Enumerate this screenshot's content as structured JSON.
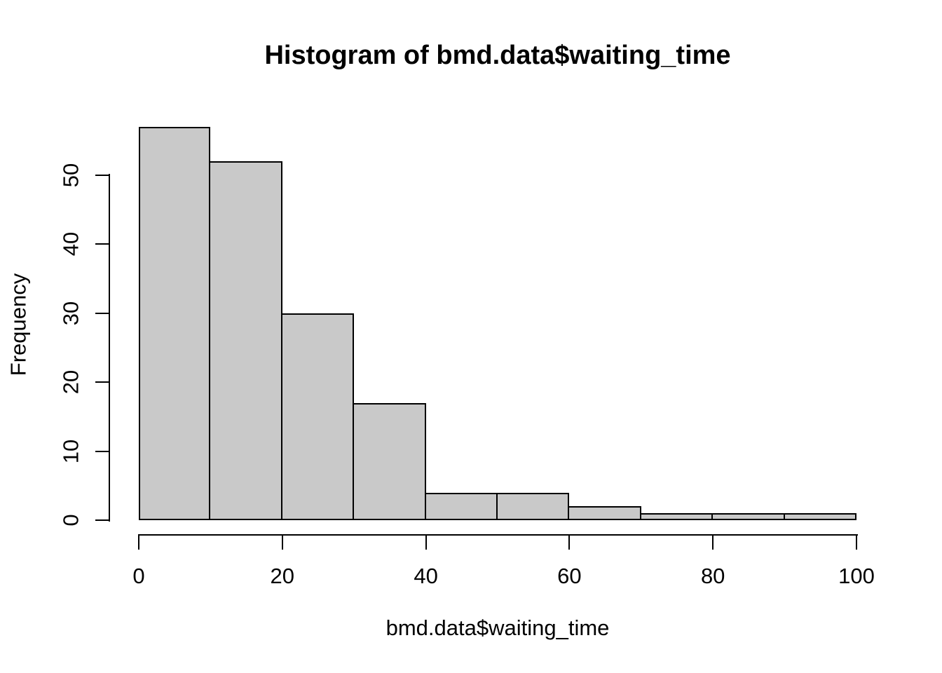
{
  "chart_data": {
    "type": "histogram",
    "title": "Histogram of bmd.data$waiting_time",
    "xlabel": "bmd.data$waiting_time",
    "ylabel": "Frequency",
    "bin_edges": [
      0,
      10,
      20,
      30,
      40,
      50,
      60,
      70,
      80,
      90,
      100
    ],
    "counts": [
      57,
      52,
      30,
      17,
      4,
      4,
      2,
      1,
      1,
      1
    ],
    "x_ticks": [
      0,
      20,
      40,
      60,
      80,
      100
    ],
    "y_ticks": [
      0,
      10,
      20,
      30,
      40,
      50
    ],
    "xlim": [
      0,
      100
    ],
    "ylim": [
      0,
      57
    ],
    "grid": false,
    "legend": false,
    "bar_fill": "#c9c9c9",
    "bar_border": "#000000",
    "axis_color": "#000000",
    "text_color": "#000000",
    "background": "#ffffff"
  }
}
